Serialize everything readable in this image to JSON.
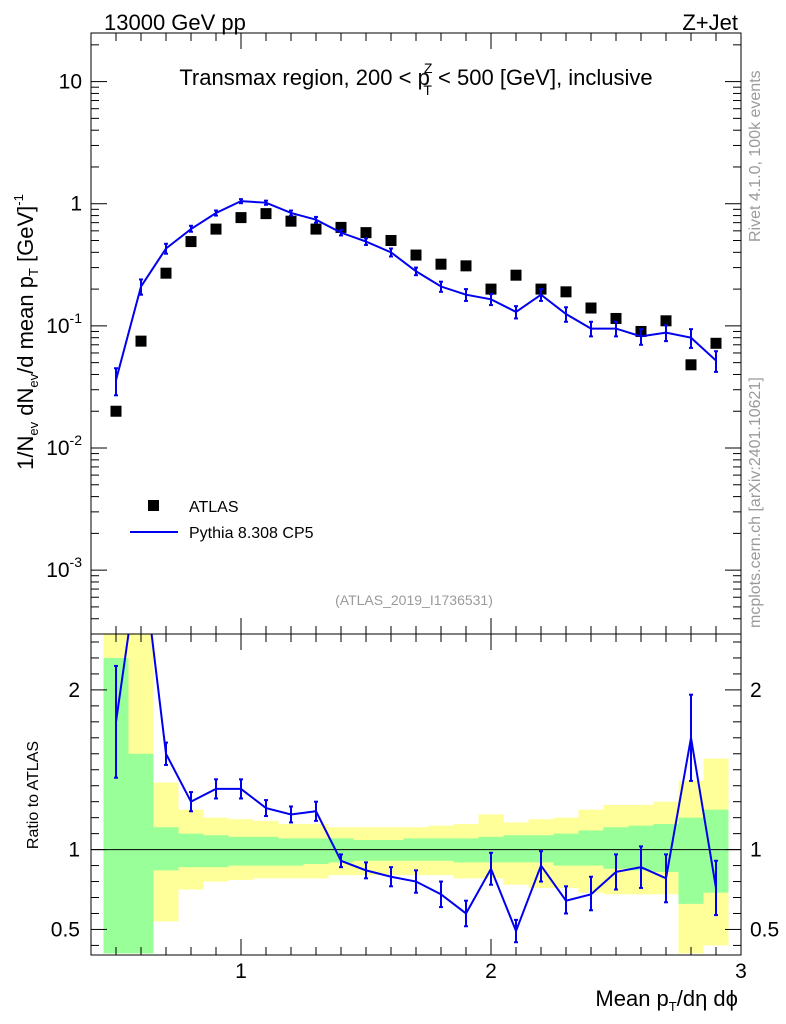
{
  "header": {
    "energy": "13000 GeV pp",
    "process": "Z+Jet"
  },
  "plot_title": {
    "prefix": "Transmax region, 200 < p",
    "sup": "Z",
    "sub": "T",
    "suffix": " < 500 [GeV], inclusive"
  },
  "side_labels": {
    "rivet": "Rivet 4.1.0,  100k events",
    "source": "mcplots.cern.ch [arXiv:2401.10621]"
  },
  "analysis_tag": "(ATLAS_2019_I1736531)",
  "colors": {
    "mc": "#0000ee",
    "data": "#000000",
    "band1": "#99ff99",
    "band2": "#ffff99"
  },
  "chart_data": [
    {
      "type": "scatter",
      "title": "Transmax region, 200 < pTZ < 500 [GeV], inclusive",
      "ylabel": "1/Nev dNev/d mean pT [GeV]^-1",
      "xlim": [
        0.4,
        3.0
      ],
      "ylim": [
        0.0003,
        25
      ],
      "yscale": "log",
      "yticks": [
        {
          "value": 0.001,
          "base": "10",
          "exp": "-3"
        },
        {
          "value": 0.01,
          "base": "10",
          "exp": "-2"
        },
        {
          "value": 0.1,
          "base": "10",
          "exp": "-1"
        },
        {
          "value": 1,
          "base": "1",
          "exp": ""
        },
        {
          "value": 10,
          "base": "10",
          "exp": ""
        }
      ],
      "legend": {
        "position": "lower-left",
        "entries": [
          "ATLAS",
          "Pythia 8.308 CP5"
        ]
      },
      "series": [
        {
          "name": "ATLAS",
          "style": "markers",
          "x": [
            0.5,
            0.6,
            0.7,
            0.8,
            0.9,
            1.0,
            1.1,
            1.2,
            1.3,
            1.4,
            1.5,
            1.6,
            1.7,
            1.8,
            1.9,
            2.0,
            2.1,
            2.2,
            2.3,
            2.4,
            2.5,
            2.6,
            2.7,
            2.8,
            2.9
          ],
          "y": [
            0.02,
            0.075,
            0.27,
            0.49,
            0.62,
            0.77,
            0.83,
            0.72,
            0.62,
            0.64,
            0.58,
            0.5,
            0.38,
            0.32,
            0.31,
            0.2,
            0.26,
            0.2,
            0.19,
            0.14,
            0.115,
            0.09,
            0.11,
            0.048,
            0.072
          ]
        },
        {
          "name": "Pythia 8.308 CP5",
          "style": "line",
          "x": [
            0.5,
            0.6,
            0.7,
            0.8,
            0.9,
            1.0,
            1.1,
            1.2,
            1.3,
            1.4,
            1.5,
            1.6,
            1.7,
            1.8,
            1.9,
            2.0,
            2.1,
            2.2,
            2.3,
            2.4,
            2.5,
            2.6,
            2.7,
            2.8,
            2.9
          ],
          "y": [
            0.036,
            0.21,
            0.43,
            0.62,
            0.84,
            1.05,
            1.02,
            0.84,
            0.74,
            0.58,
            0.49,
            0.4,
            0.28,
            0.21,
            0.18,
            0.165,
            0.13,
            0.18,
            0.125,
            0.095,
            0.095,
            0.082,
            0.088,
            0.08,
            0.052
          ],
          "err_lo": [
            0.027,
            0.18,
            0.39,
            0.59,
            0.8,
            1.01,
            0.98,
            0.8,
            0.7,
            0.55,
            0.46,
            0.37,
            0.26,
            0.19,
            0.16,
            0.148,
            0.115,
            0.16,
            0.108,
            0.082,
            0.082,
            0.07,
            0.075,
            0.066,
            0.042
          ],
          "err_hi": [
            0.045,
            0.24,
            0.47,
            0.66,
            0.88,
            1.09,
            1.06,
            0.88,
            0.78,
            0.61,
            0.52,
            0.43,
            0.3,
            0.23,
            0.2,
            0.182,
            0.145,
            0.2,
            0.142,
            0.108,
            0.108,
            0.094,
            0.101,
            0.094,
            0.062
          ]
        }
      ]
    },
    {
      "type": "line",
      "ylabel": "Ratio to ATLAS",
      "xlabel": "Mean pT/dη dϕ",
      "xlim": [
        0.4,
        3.0
      ],
      "ylim": [
        0.34,
        2.35
      ],
      "xticks": [
        1,
        2,
        3
      ],
      "yticks": [
        0.5,
        1,
        2
      ],
      "reference_line": 1,
      "bands": {
        "edges": [
          0.45,
          0.55,
          0.65,
          0.75,
          0.85,
          0.95,
          1.05,
          1.15,
          1.25,
          1.35,
          1.45,
          1.55,
          1.65,
          1.75,
          1.85,
          1.95,
          2.05,
          2.15,
          2.25,
          2.35,
          2.45,
          2.55,
          2.65,
          2.75,
          2.85,
          2.95
        ],
        "inner_lo": [
          0.35,
          0.35,
          0.87,
          0.89,
          0.89,
          0.9,
          0.9,
          0.9,
          0.91,
          0.92,
          0.93,
          0.93,
          0.93,
          0.93,
          0.92,
          0.92,
          0.92,
          0.92,
          0.9,
          0.9,
          0.88,
          0.87,
          0.86,
          0.66,
          0.73
        ],
        "inner_hi": [
          2.2,
          1.6,
          1.14,
          1.1,
          1.09,
          1.08,
          1.08,
          1.07,
          1.07,
          1.07,
          1.06,
          1.06,
          1.07,
          1.07,
          1.07,
          1.08,
          1.09,
          1.09,
          1.1,
          1.12,
          1.14,
          1.15,
          1.16,
          1.2,
          1.25
        ],
        "outer_lo": [
          0.35,
          0.35,
          0.55,
          0.75,
          0.8,
          0.81,
          0.82,
          0.82,
          0.82,
          0.84,
          0.84,
          0.84,
          0.84,
          0.84,
          0.82,
          0.82,
          0.78,
          0.76,
          0.76,
          0.73,
          0.72,
          0.72,
          0.72,
          0.35,
          0.4
        ],
        "outer_hi": [
          2.35,
          2.35,
          1.42,
          1.25,
          1.2,
          1.19,
          1.18,
          1.16,
          1.16,
          1.14,
          1.14,
          1.14,
          1.14,
          1.15,
          1.16,
          1.22,
          1.17,
          1.19,
          1.2,
          1.25,
          1.28,
          1.28,
          1.3,
          1.43,
          1.57
        ]
      },
      "series": [
        {
          "name": "Pythia 8.308 CP5 / ATLAS",
          "x": [
            0.5,
            0.6,
            0.7,
            0.8,
            0.9,
            1.0,
            1.1,
            1.2,
            1.3,
            1.4,
            1.5,
            1.6,
            1.7,
            1.8,
            1.9,
            2.0,
            2.1,
            2.2,
            2.3,
            2.4,
            2.5,
            2.6,
            2.7,
            2.8,
            2.9
          ],
          "y": [
            1.8,
            2.9,
            1.6,
            1.3,
            1.38,
            1.38,
            1.26,
            1.22,
            1.24,
            0.93,
            0.87,
            0.83,
            0.8,
            0.72,
            0.6,
            0.88,
            0.49,
            0.9,
            0.68,
            0.72,
            0.86,
            0.89,
            0.82,
            1.7,
            0.76
          ],
          "err_lo": [
            1.45,
            2.6,
            1.53,
            1.24,
            1.32,
            1.32,
            1.21,
            1.17,
            1.18,
            0.89,
            0.82,
            0.77,
            0.73,
            0.64,
            0.52,
            0.78,
            0.42,
            0.8,
            0.6,
            0.62,
            0.75,
            0.76,
            0.67,
            1.43,
            0.59
          ],
          "err_hi": [
            2.15,
            3.2,
            1.67,
            1.36,
            1.44,
            1.44,
            1.31,
            1.27,
            1.3,
            0.97,
            0.92,
            0.89,
            0.87,
            0.8,
            0.68,
            0.98,
            0.56,
            0.99,
            0.77,
            0.83,
            0.97,
            1.02,
            0.97,
            1.97,
            0.93
          ]
        }
      ]
    }
  ],
  "axis_texts": {
    "top_ylabel": {
      "a": "1/N",
      "a_sub": "ev",
      "b": " dN",
      "b_sub": "ev",
      "c": "/d mean p",
      "c_sub": "T",
      "d": " [GeV]",
      "d_sup": "-1"
    },
    "bottom_ylabel": "Ratio to ATLAS",
    "xlabel": {
      "a": "Mean p",
      "a_sub": "T",
      "b": "/dη dϕ"
    },
    "ratio_ticks": [
      "0.5",
      "1",
      "2"
    ],
    "x_ticks": [
      "1",
      "2",
      "3"
    ]
  }
}
